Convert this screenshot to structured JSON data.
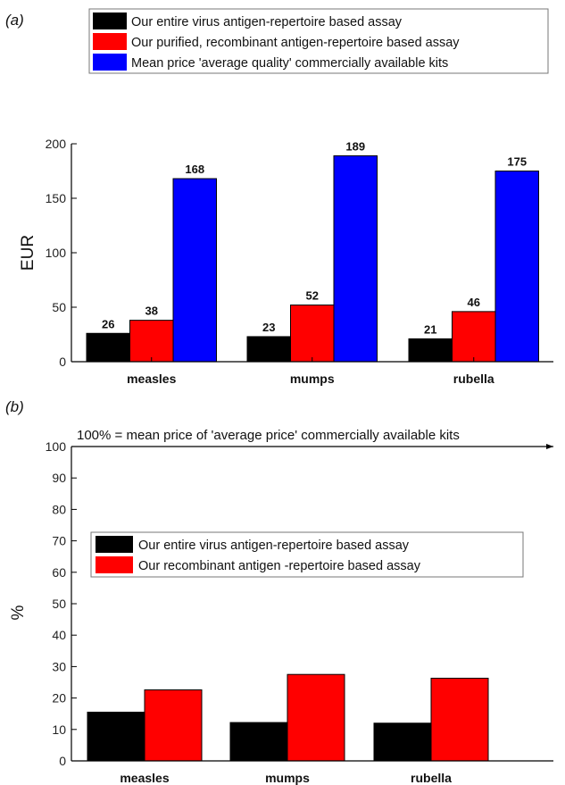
{
  "chart_data": [
    {
      "type": "bar",
      "panel_label": "(a)",
      "categories": [
        "measles",
        "mumps",
        "rubella"
      ],
      "series": [
        {
          "name": "Our entire virus antigen-repertoire based assay",
          "values": [
            26,
            23,
            21
          ],
          "color": "#000000"
        },
        {
          "name": "Our purified, recombinant antigen-repertoire based assay",
          "values": [
            38,
            52,
            46
          ],
          "color": "#ff0000"
        },
        {
          "name": "Mean price 'average quality' commercially available kits",
          "values": [
            168,
            189,
            175
          ],
          "color": "#0000ff"
        }
      ],
      "data_labels": true,
      "ylabel": "EUR",
      "ylim": [
        0,
        200
      ],
      "yticks": [
        0,
        50,
        100,
        150,
        200
      ],
      "legend_position": "top"
    },
    {
      "type": "bar",
      "panel_label": "(b)",
      "categories": [
        "measles",
        "mumps",
        "rubella"
      ],
      "series": [
        {
          "name": "Our entire virus antigen-repertoire based assay",
          "values": [
            15.5,
            12.2,
            12.0
          ],
          "color": "#000000"
        },
        {
          "name": "Our recombinant antigen -repertoire based assay",
          "values": [
            22.6,
            27.5,
            26.3
          ],
          "color": "#ff0000"
        }
      ],
      "ylabel": "%",
      "ylim": [
        0,
        100
      ],
      "yticks": [
        0,
        10,
        20,
        30,
        40,
        50,
        60,
        70,
        80,
        90,
        100
      ],
      "annotation": "100% = mean  price of  'average price' commercially available kits",
      "legend_position": "middle-left"
    }
  ]
}
